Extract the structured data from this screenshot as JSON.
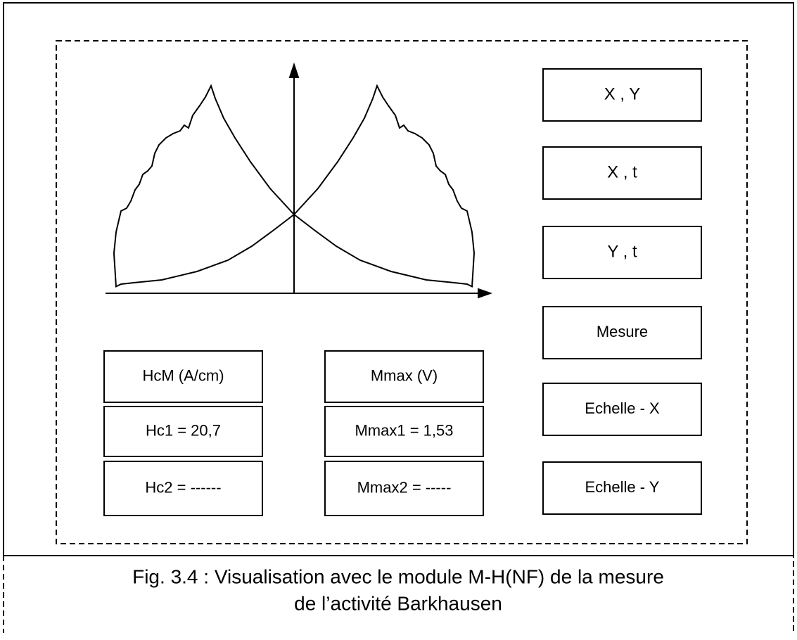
{
  "buttons": [
    "X , Y",
    "X , t",
    "Y , t",
    "Mesure",
    "Echelle - X",
    "Echelle - Y"
  ],
  "table": {
    "columns": [
      {
        "header": "HcM (A/cm)",
        "rows": [
          "Hc1 = 20,7",
          "Hc2 = ------"
        ]
      },
      {
        "header": "Mmax (V)",
        "rows": [
          "Mmax1 = 1,53",
          "Mmax2 = -----"
        ]
      }
    ]
  },
  "caption": {
    "lines": [
      "Fig. 3.4 : Visualisation avec le module M-H(NF) de la mesure",
      "de l’activité Barkhausen"
    ]
  }
}
